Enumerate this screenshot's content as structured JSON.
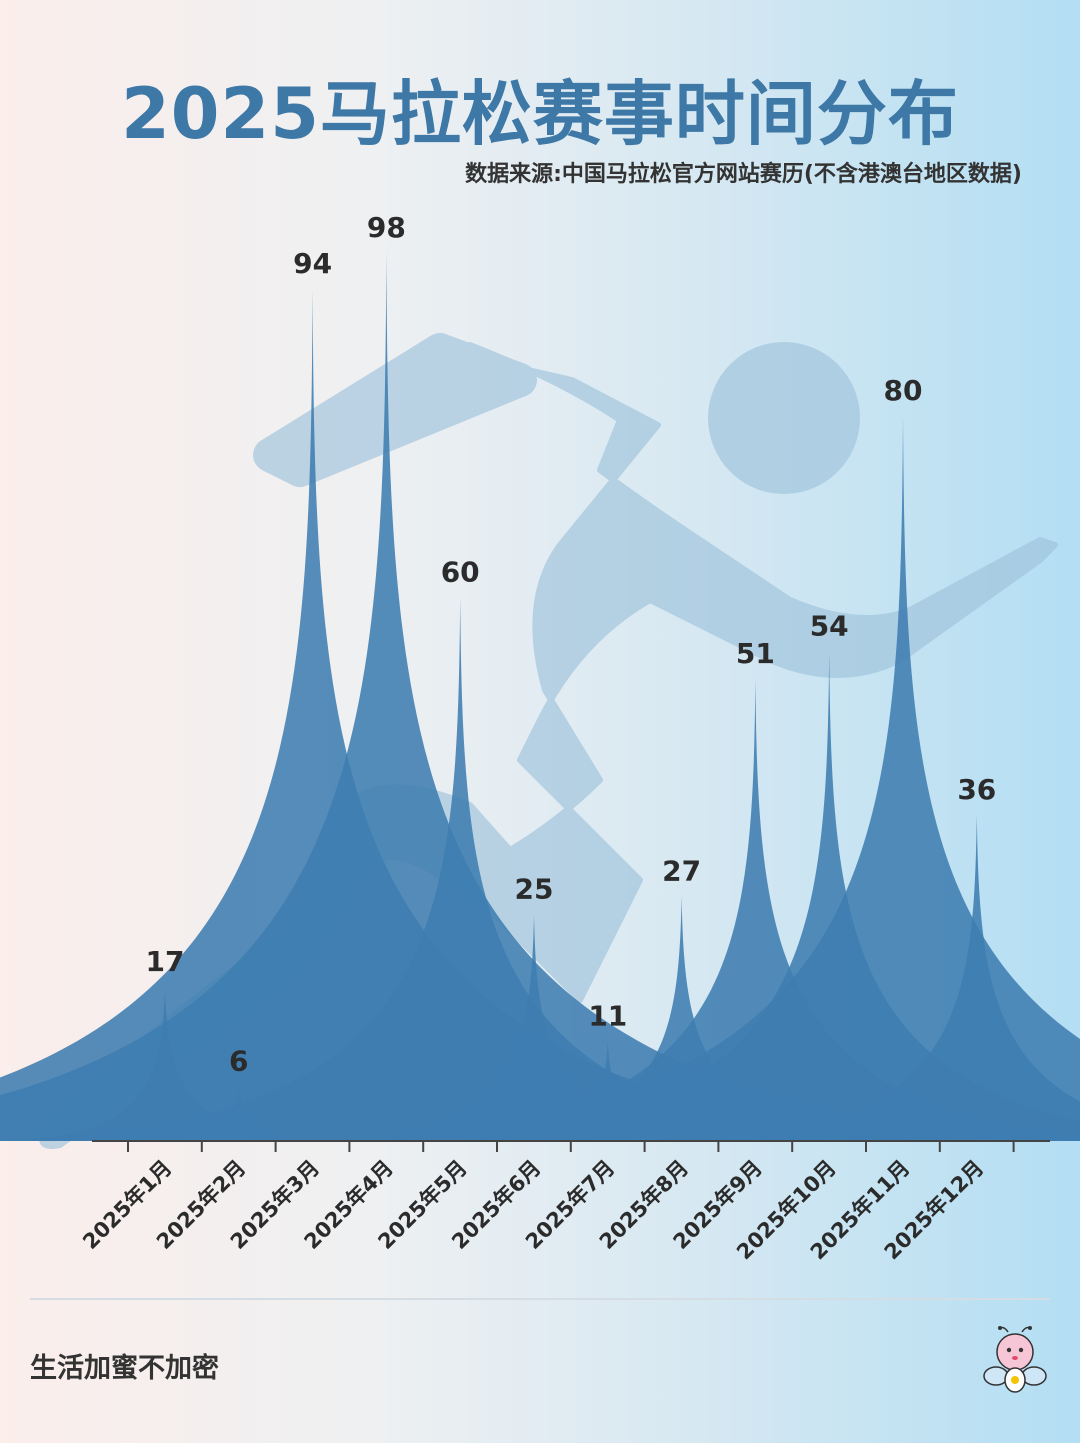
{
  "title": "2025马拉松赛事时间分布",
  "source": "数据来源:中国马拉松官方网站赛历(不含港澳台地区数据)",
  "footer": {
    "brand": "生活加蜜不加密"
  },
  "colors": {
    "title": "#3d78a6",
    "spike": "#3f7db0",
    "runner": "#9fc3dc",
    "axis": "#444444"
  },
  "icons": {
    "background": "runner-silhouette-icon",
    "mascot": "bee-mascot-icon"
  },
  "chart_data": {
    "type": "area",
    "title": "2025马拉松赛事时间分布",
    "categories": [
      "2025年1月",
      "2025年2月",
      "2025年3月",
      "2025年4月",
      "2025年5月",
      "2025年6月",
      "2025年7月",
      "2025年8月",
      "2025年9月",
      "2025年10月",
      "2025年11月",
      "2025年12月"
    ],
    "values": [
      17,
      6,
      94,
      98,
      60,
      25,
      11,
      27,
      51,
      54,
      80,
      36
    ],
    "ylim": [
      0,
      98
    ],
    "grid": false,
    "xlabel": "",
    "ylabel": ""
  }
}
